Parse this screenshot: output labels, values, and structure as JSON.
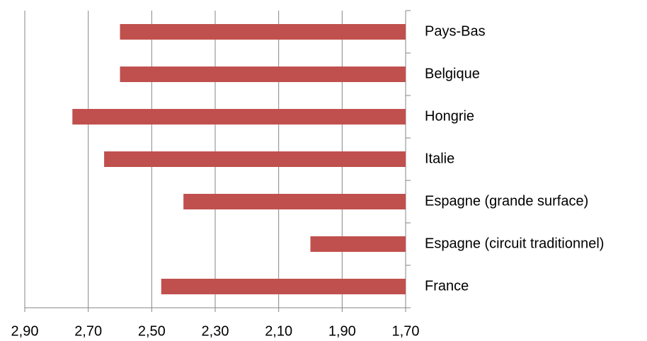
{
  "chart_data": {
    "type": "bar",
    "orientation": "horizontal",
    "categories": [
      "Pays-Bas",
      "Belgique",
      "Hongrie",
      "Italie",
      "Espagne (grande surface)",
      "Espagne (circuit traditionnel)",
      "France"
    ],
    "values": [
      2.6,
      2.6,
      2.75,
      2.65,
      2.4,
      2.0,
      2.47
    ],
    "color": "#c0504d",
    "xlim": [
      2.9,
      1.7
    ],
    "xticks": [
      {
        "value": 2.9,
        "label": "2,90"
      },
      {
        "value": 2.7,
        "label": "2,70"
      },
      {
        "value": 2.5,
        "label": "2,50"
      },
      {
        "value": 2.3,
        "label": "2,30"
      },
      {
        "value": 2.1,
        "label": "2,10"
      },
      {
        "value": 1.9,
        "label": "1,90"
      },
      {
        "value": 1.7,
        "label": "1,70"
      }
    ],
    "grid": true
  }
}
